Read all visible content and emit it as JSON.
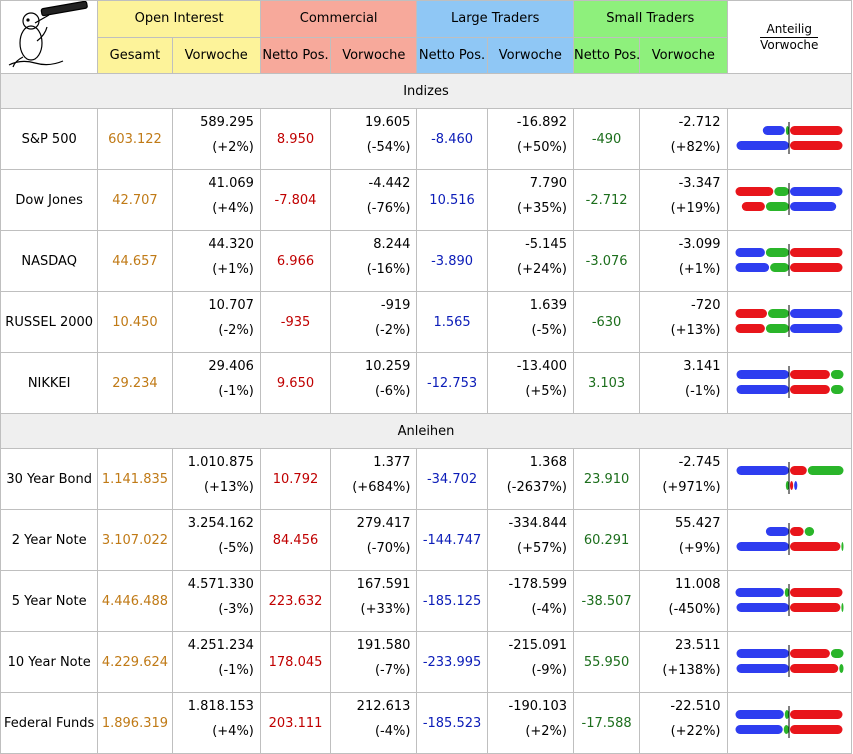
{
  "header": {
    "open_interest": "Open Interest",
    "commercial": "Commercial",
    "large_traders": "Large Traders",
    "small_traders": "Small Traders",
    "anteilig": "Anteilig",
    "vorwoche": "Vorwoche",
    "sub": {
      "gesamt": "Gesamt",
      "vorwoche": "Vorwoche",
      "netto": "Netto Pos."
    }
  },
  "colors": {
    "red": "#e8151b",
    "blue": "#2e3df0",
    "green": "#2ab52a"
  },
  "sections": [
    {
      "title": "Indizes",
      "rows": [
        {
          "name": "S&P 500",
          "oi": "603.122",
          "oi_prev": "589.295",
          "oi_chg": "(+2%)",
          "com": "8.950",
          "com_prev": "19.605",
          "com_chg": "(-54%)",
          "lt": "-8.460",
          "lt_prev": "-16.892",
          "lt_chg": "(+50%)",
          "st": "-490",
          "st_prev": "-2.712",
          "st_chg": "(+82%)",
          "bars": [
            [
              [
                "green",
                -3
              ],
              [
                "blue",
                -21
              ],
              [
                "red",
                50
              ]
            ],
            [
              [
                "blue",
                -50
              ],
              [
                "red",
                50
              ]
            ]
          ]
        },
        {
          "name": "Dow Jones",
          "oi": "42.707",
          "oi_prev": "41.069",
          "oi_chg": "(+4%)",
          "com": "-7.804",
          "com_prev": "-4.442",
          "com_chg": "(-76%)",
          "lt": "10.516",
          "lt_prev": "7.790",
          "lt_chg": "(+35%)",
          "st": "-2.712",
          "st_prev": "-3.347",
          "st_chg": "(+19%)",
          "bars": [
            [
              [
                "green",
                -14
              ],
              [
                "red",
                -36
              ],
              [
                "blue",
                50
              ]
            ],
            [
              [
                "green",
                -22
              ],
              [
                "red",
                -22
              ],
              [
                "blue",
                44
              ]
            ]
          ]
        },
        {
          "name": "NASDAQ",
          "oi": "44.657",
          "oi_prev": "44.320",
          "oi_chg": "(+1%)",
          "com": "6.966",
          "com_prev": "8.244",
          "com_chg": "(-16%)",
          "lt": "-3.890",
          "lt_prev": "-5.145",
          "lt_chg": "(+24%)",
          "st": "-3.076",
          "st_prev": "-3.099",
          "st_chg": "(+1%)",
          "bars": [
            [
              [
                "green",
                -22
              ],
              [
                "blue",
                -28
              ],
              [
                "red",
                50
              ]
            ],
            [
              [
                "green",
                -18
              ],
              [
                "blue",
                -32
              ],
              [
                "red",
                50
              ]
            ]
          ]
        },
        {
          "name": "RUSSEL 2000",
          "oi": "10.450",
          "oi_prev": "10.707",
          "oi_chg": "(-2%)",
          "com": "-935",
          "com_prev": "-919",
          "com_chg": "(-2%)",
          "lt": "1.565",
          "lt_prev": "1.639",
          "lt_chg": "(-5%)",
          "st": "-630",
          "st_prev": "-720",
          "st_chg": "(+13%)",
          "bars": [
            [
              [
                "green",
                -20
              ],
              [
                "red",
                -30
              ],
              [
                "blue",
                50
              ]
            ],
            [
              [
                "green",
                -22
              ],
              [
                "red",
                -28
              ],
              [
                "blue",
                50
              ]
            ]
          ]
        },
        {
          "name": "NIKKEI",
          "oi": "29.234",
          "oi_prev": "29.406",
          "oi_chg": "(-1%)",
          "com": "9.650",
          "com_prev": "10.259",
          "com_chg": "(-6%)",
          "lt": "-12.753",
          "lt_prev": "-13.400",
          "lt_chg": "(+5%)",
          "st": "3.103",
          "st_prev": "3.141",
          "st_chg": "(-1%)",
          "bars": [
            [
              [
                "blue",
                -50
              ],
              [
                "red",
                38
              ],
              [
                "green",
                12
              ]
            ],
            [
              [
                "blue",
                -50
              ],
              [
                "red",
                38
              ],
              [
                "green",
                12
              ]
            ]
          ]
        }
      ]
    },
    {
      "title": "Anleihen",
      "rows": [
        {
          "name": "30 Year Bond",
          "oi": "1.141.835",
          "oi_prev": "1.010.875",
          "oi_chg": "(+13%)",
          "com": "10.792",
          "com_prev": "1.377",
          "com_chg": "(+684%)",
          "lt": "-34.702",
          "lt_prev": "1.368",
          "lt_chg": "(-2637%)",
          "st": "23.910",
          "st_prev": "-2.745",
          "st_chg": "(+971%)",
          "bars": [
            [
              [
                "blue",
                -50
              ],
              [
                "red",
                16
              ],
              [
                "green",
                34
              ]
            ],
            [
              [
                "green",
                -3
              ],
              [
                "red",
                3
              ],
              [
                "blue",
                3
              ]
            ]
          ]
        },
        {
          "name": "2 Year Note",
          "oi": "3.107.022",
          "oi_prev": "3.254.162",
          "oi_chg": "(-5%)",
          "com": "84.456",
          "com_prev": "279.417",
          "com_chg": "(-70%)",
          "lt": "-144.747",
          "lt_prev": "-334.844",
          "lt_chg": "(+57%)",
          "st": "60.291",
          "st_prev": "55.427",
          "st_chg": "(+9%)",
          "bars": [
            [
              [
                "blue",
                -22
              ],
              [
                "red",
                13
              ],
              [
                "green",
                9
              ]
            ],
            [
              [
                "blue",
                -50
              ],
              [
                "red",
                48
              ],
              [
                "green",
                2
              ]
            ]
          ]
        },
        {
          "name": "5 Year Note",
          "oi": "4.446.488",
          "oi_prev": "4.571.330",
          "oi_chg": "(-3%)",
          "com": "223.632",
          "com_prev": "167.591",
          "com_chg": "(+33%)",
          "lt": "-185.125",
          "lt_prev": "-178.599",
          "lt_chg": "(-4%)",
          "st": "-38.507",
          "st_prev": "11.008",
          "st_chg": "(-450%)",
          "bars": [
            [
              [
                "green",
                -4
              ],
              [
                "blue",
                -46
              ],
              [
                "red",
                50
              ]
            ],
            [
              [
                "blue",
                -50
              ],
              [
                "red",
                48
              ],
              [
                "green",
                2
              ]
            ]
          ]
        },
        {
          "name": "10 Year Note",
          "oi": "4.229.624",
          "oi_prev": "4.251.234",
          "oi_chg": "(-1%)",
          "com": "178.045",
          "com_prev": "191.580",
          "com_chg": "(-7%)",
          "lt": "-233.995",
          "lt_prev": "-215.091",
          "lt_chg": "(-9%)",
          "st": "55.950",
          "st_prev": "23.511",
          "st_chg": "(+138%)",
          "bars": [
            [
              [
                "blue",
                -50
              ],
              [
                "red",
                38
              ],
              [
                "green",
                12
              ]
            ],
            [
              [
                "blue",
                -50
              ],
              [
                "red",
                46
              ],
              [
                "green",
                4
              ]
            ]
          ]
        },
        {
          "name": "Federal Funds",
          "oi": "1.896.319",
          "oi_prev": "1.818.153",
          "oi_chg": "(+4%)",
          "com": "203.111",
          "com_prev": "212.613",
          "com_chg": "(-4%)",
          "lt": "-185.523",
          "lt_prev": "-190.103",
          "lt_chg": "(+2%)",
          "st": "-17.588",
          "st_prev": "-22.510",
          "st_chg": "(+22%)",
          "bars": [
            [
              [
                "green",
                -4
              ],
              [
                "blue",
                -46
              ],
              [
                "red",
                50
              ]
            ],
            [
              [
                "green",
                -5
              ],
              [
                "blue",
                -45
              ],
              [
                "red",
                50
              ]
            ]
          ]
        }
      ]
    }
  ]
}
